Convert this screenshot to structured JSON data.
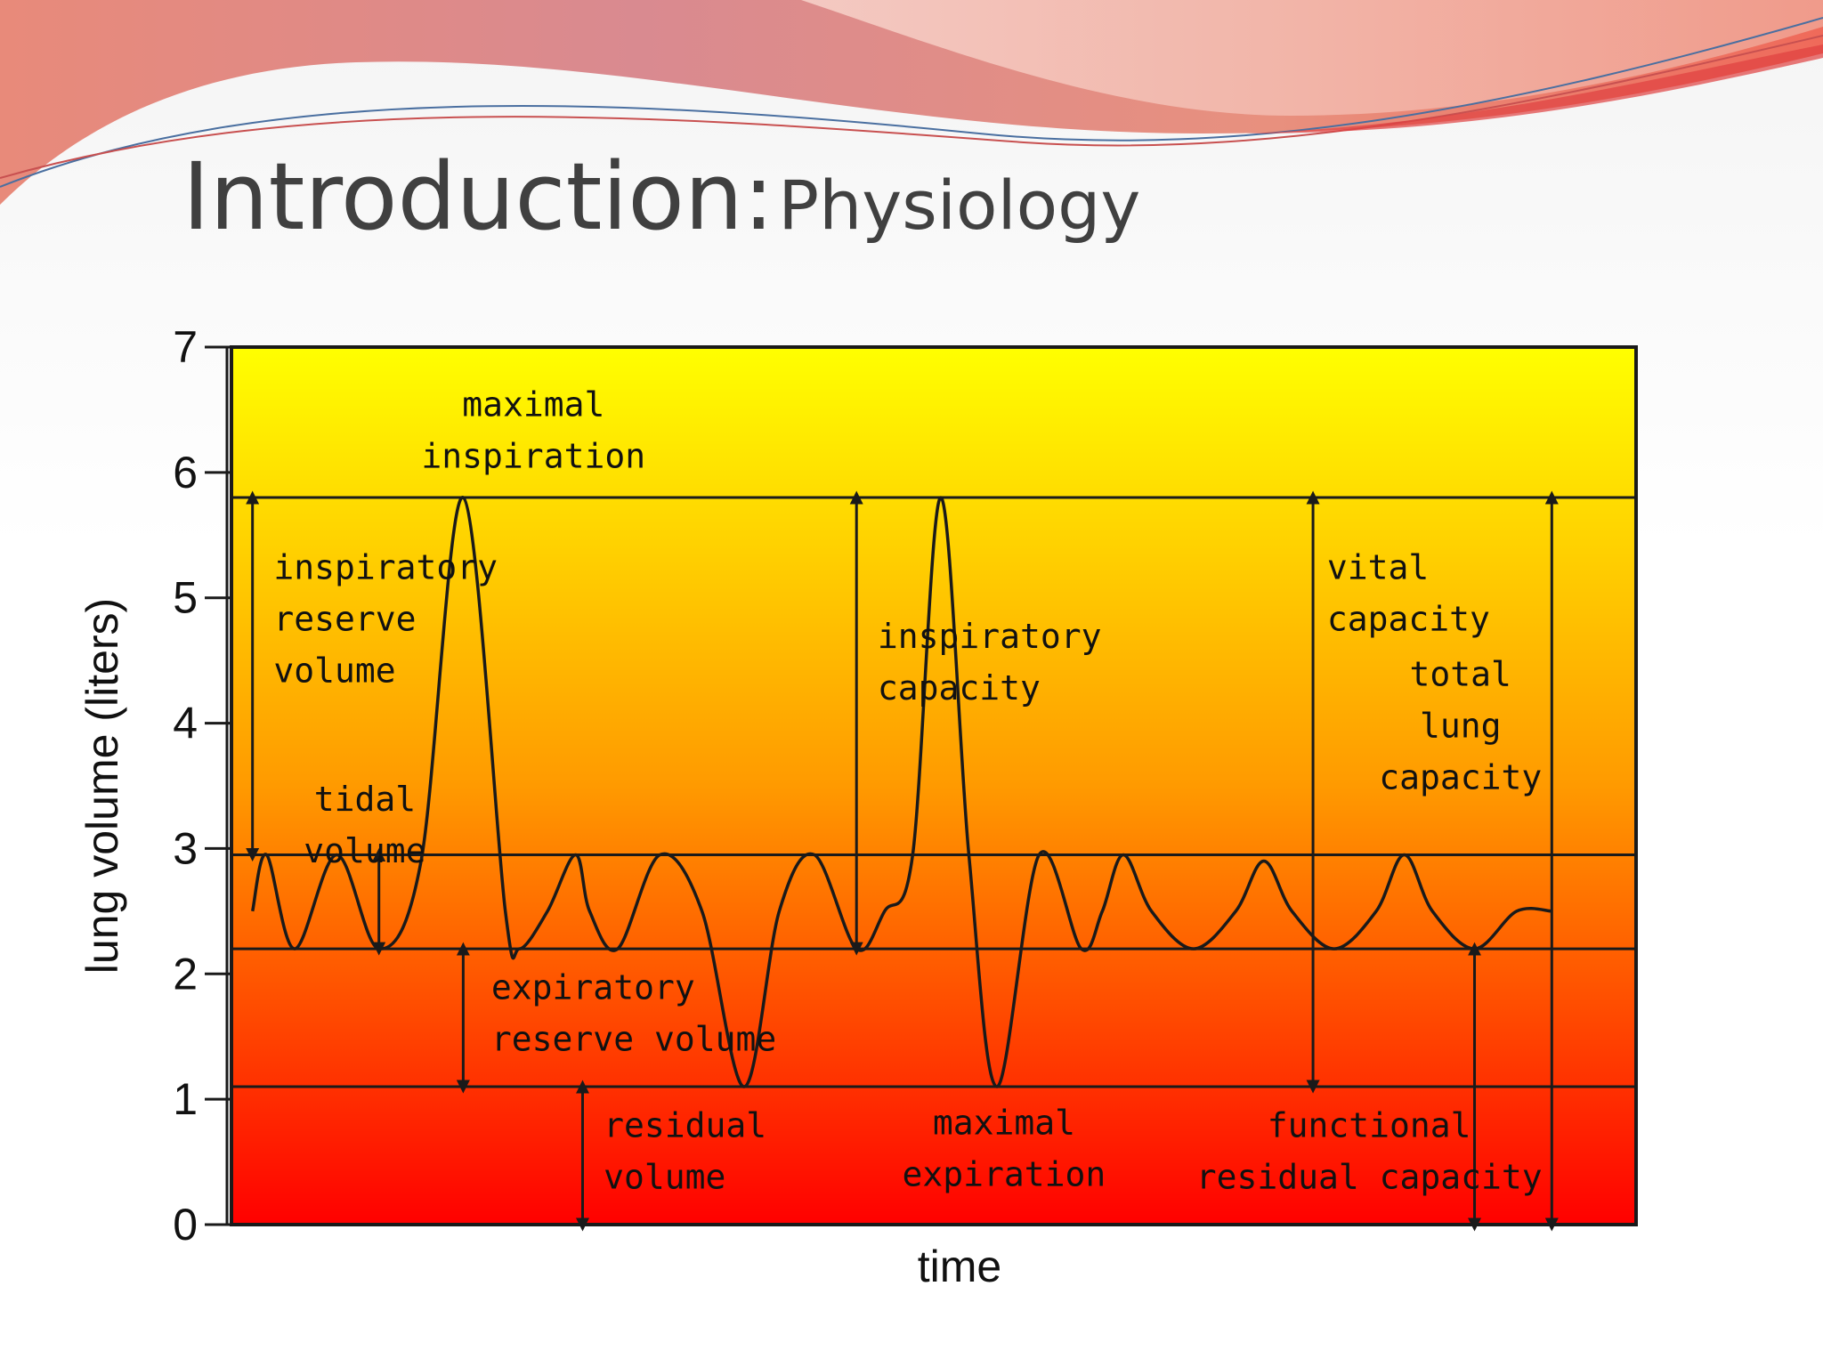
{
  "slide": {
    "title_main": "Introduction:",
    "title_sub": "Physiology"
  },
  "chart_data": {
    "type": "line",
    "xlabel": "time",
    "ylabel": "lung volume (liters)",
    "ylim": [
      0,
      7
    ],
    "yticks": [
      "0",
      "1",
      "2",
      "3",
      "4",
      "5",
      "6",
      "7"
    ],
    "grid": false,
    "levels": [
      {
        "name": "max",
        "value": 5.8
      },
      {
        "name": "tidal-top",
        "value": 2.95
      },
      {
        "name": "tidal-bottom",
        "value": 2.2
      },
      {
        "name": "residual",
        "value": 1.1
      }
    ],
    "series": [
      {
        "x": [
          0.3,
          0.5,
          0.9,
          1.5,
          2.1,
          2.7,
          3.3,
          3.9,
          4.1,
          4.5,
          4.9,
          5.1,
          5.5,
          6.1,
          6.7,
          7.3,
          7.8,
          8.3,
          8.9,
          9.3,
          9.7,
          10.1,
          10.5,
          10.9,
          11.5,
          12.1,
          12.4,
          12.7,
          13.1,
          13.7,
          14.3,
          14.7,
          15.1,
          15.7,
          16.3,
          16.7,
          17.1,
          17.7,
          18.3,
          18.8
        ],
        "y": [
          2.5,
          2.95,
          2.2,
          2.95,
          2.2,
          2.9,
          5.8,
          2.5,
          2.2,
          2.5,
          2.95,
          2.5,
          2.2,
          2.95,
          2.5,
          1.1,
          2.5,
          2.95,
          2.2,
          2.5,
          2.95,
          5.8,
          2.95,
          1.1,
          2.95,
          2.2,
          2.5,
          2.95,
          2.5,
          2.2,
          2.5,
          2.9,
          2.5,
          2.2,
          2.5,
          2.95,
          2.5,
          2.2,
          2.5,
          2.5
        ]
      }
    ],
    "annotations": [
      {
        "text": [
          "maximal",
          "inspiration"
        ]
      },
      {
        "text": [
          "inspiratory",
          "reserve",
          "volume"
        ]
      },
      {
        "text": [
          "tidal",
          "volume"
        ]
      },
      {
        "text": [
          "inspiratory",
          "capacity"
        ]
      },
      {
        "text": [
          "vital",
          "capacity"
        ]
      },
      {
        "text": [
          "total",
          "lung",
          "capacity"
        ]
      },
      {
        "text": [
          "expiratory",
          "reserve volume"
        ]
      },
      {
        "text": [
          "residual",
          "volume"
        ]
      },
      {
        "text": [
          "maximal",
          "expiration"
        ]
      },
      {
        "text": [
          "functional",
          "residual capacity"
        ]
      }
    ],
    "colors": {
      "top": "#ffff00",
      "bottom": "#ff0000",
      "mid": "#ff8c00",
      "line": "#1a1a1a"
    }
  }
}
